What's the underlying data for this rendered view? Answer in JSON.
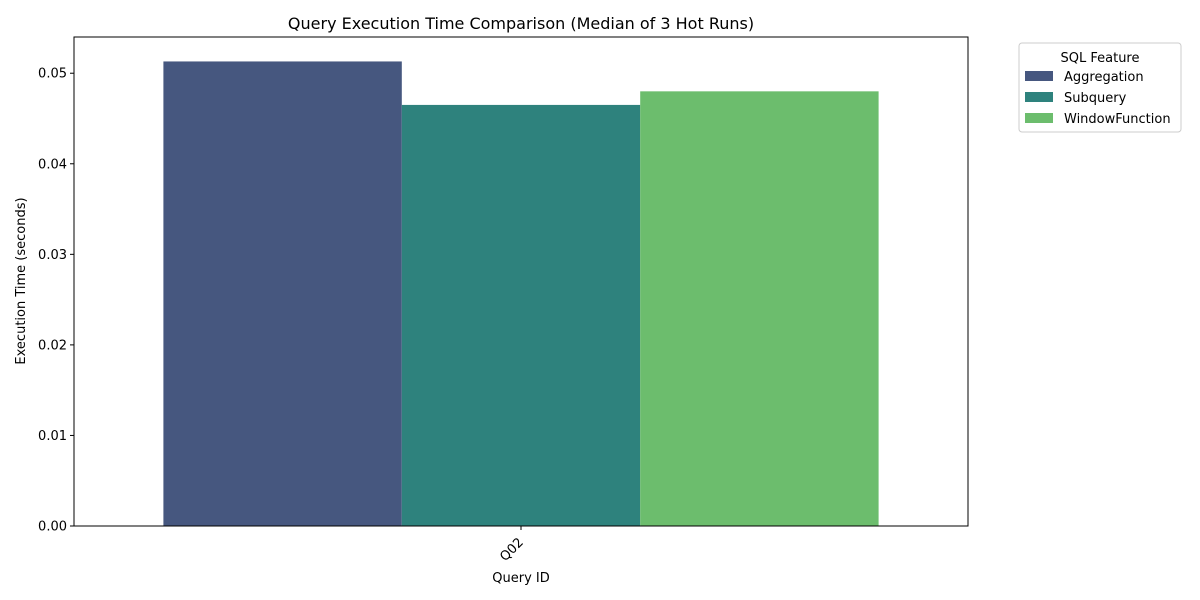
{
  "chart_data": {
    "type": "bar",
    "title": "Query Execution Time Comparison (Median of 3 Hot Runs)",
    "xlabel": "Query ID",
    "ylabel": "Execution Time (seconds)",
    "categories": [
      "Q02"
    ],
    "ylim": [
      0,
      0.054
    ],
    "yticks": [
      0.0,
      0.01,
      0.02,
      0.03,
      0.04,
      0.05
    ],
    "ytick_labels": [
      "0.00",
      "0.01",
      "0.02",
      "0.03",
      "0.04",
      "0.05"
    ],
    "grid": false,
    "legend": {
      "title": "SQL Feature",
      "placement": "outside-top-right"
    },
    "series": [
      {
        "name": "Aggregation",
        "values": [
          0.0513
        ],
        "color": "#46577f"
      },
      {
        "name": "Subquery",
        "values": [
          0.0465
        ],
        "color": "#2e827d"
      },
      {
        "name": "WindowFunction",
        "values": [
          0.048
        ],
        "color": "#6cbd6d"
      }
    ]
  }
}
